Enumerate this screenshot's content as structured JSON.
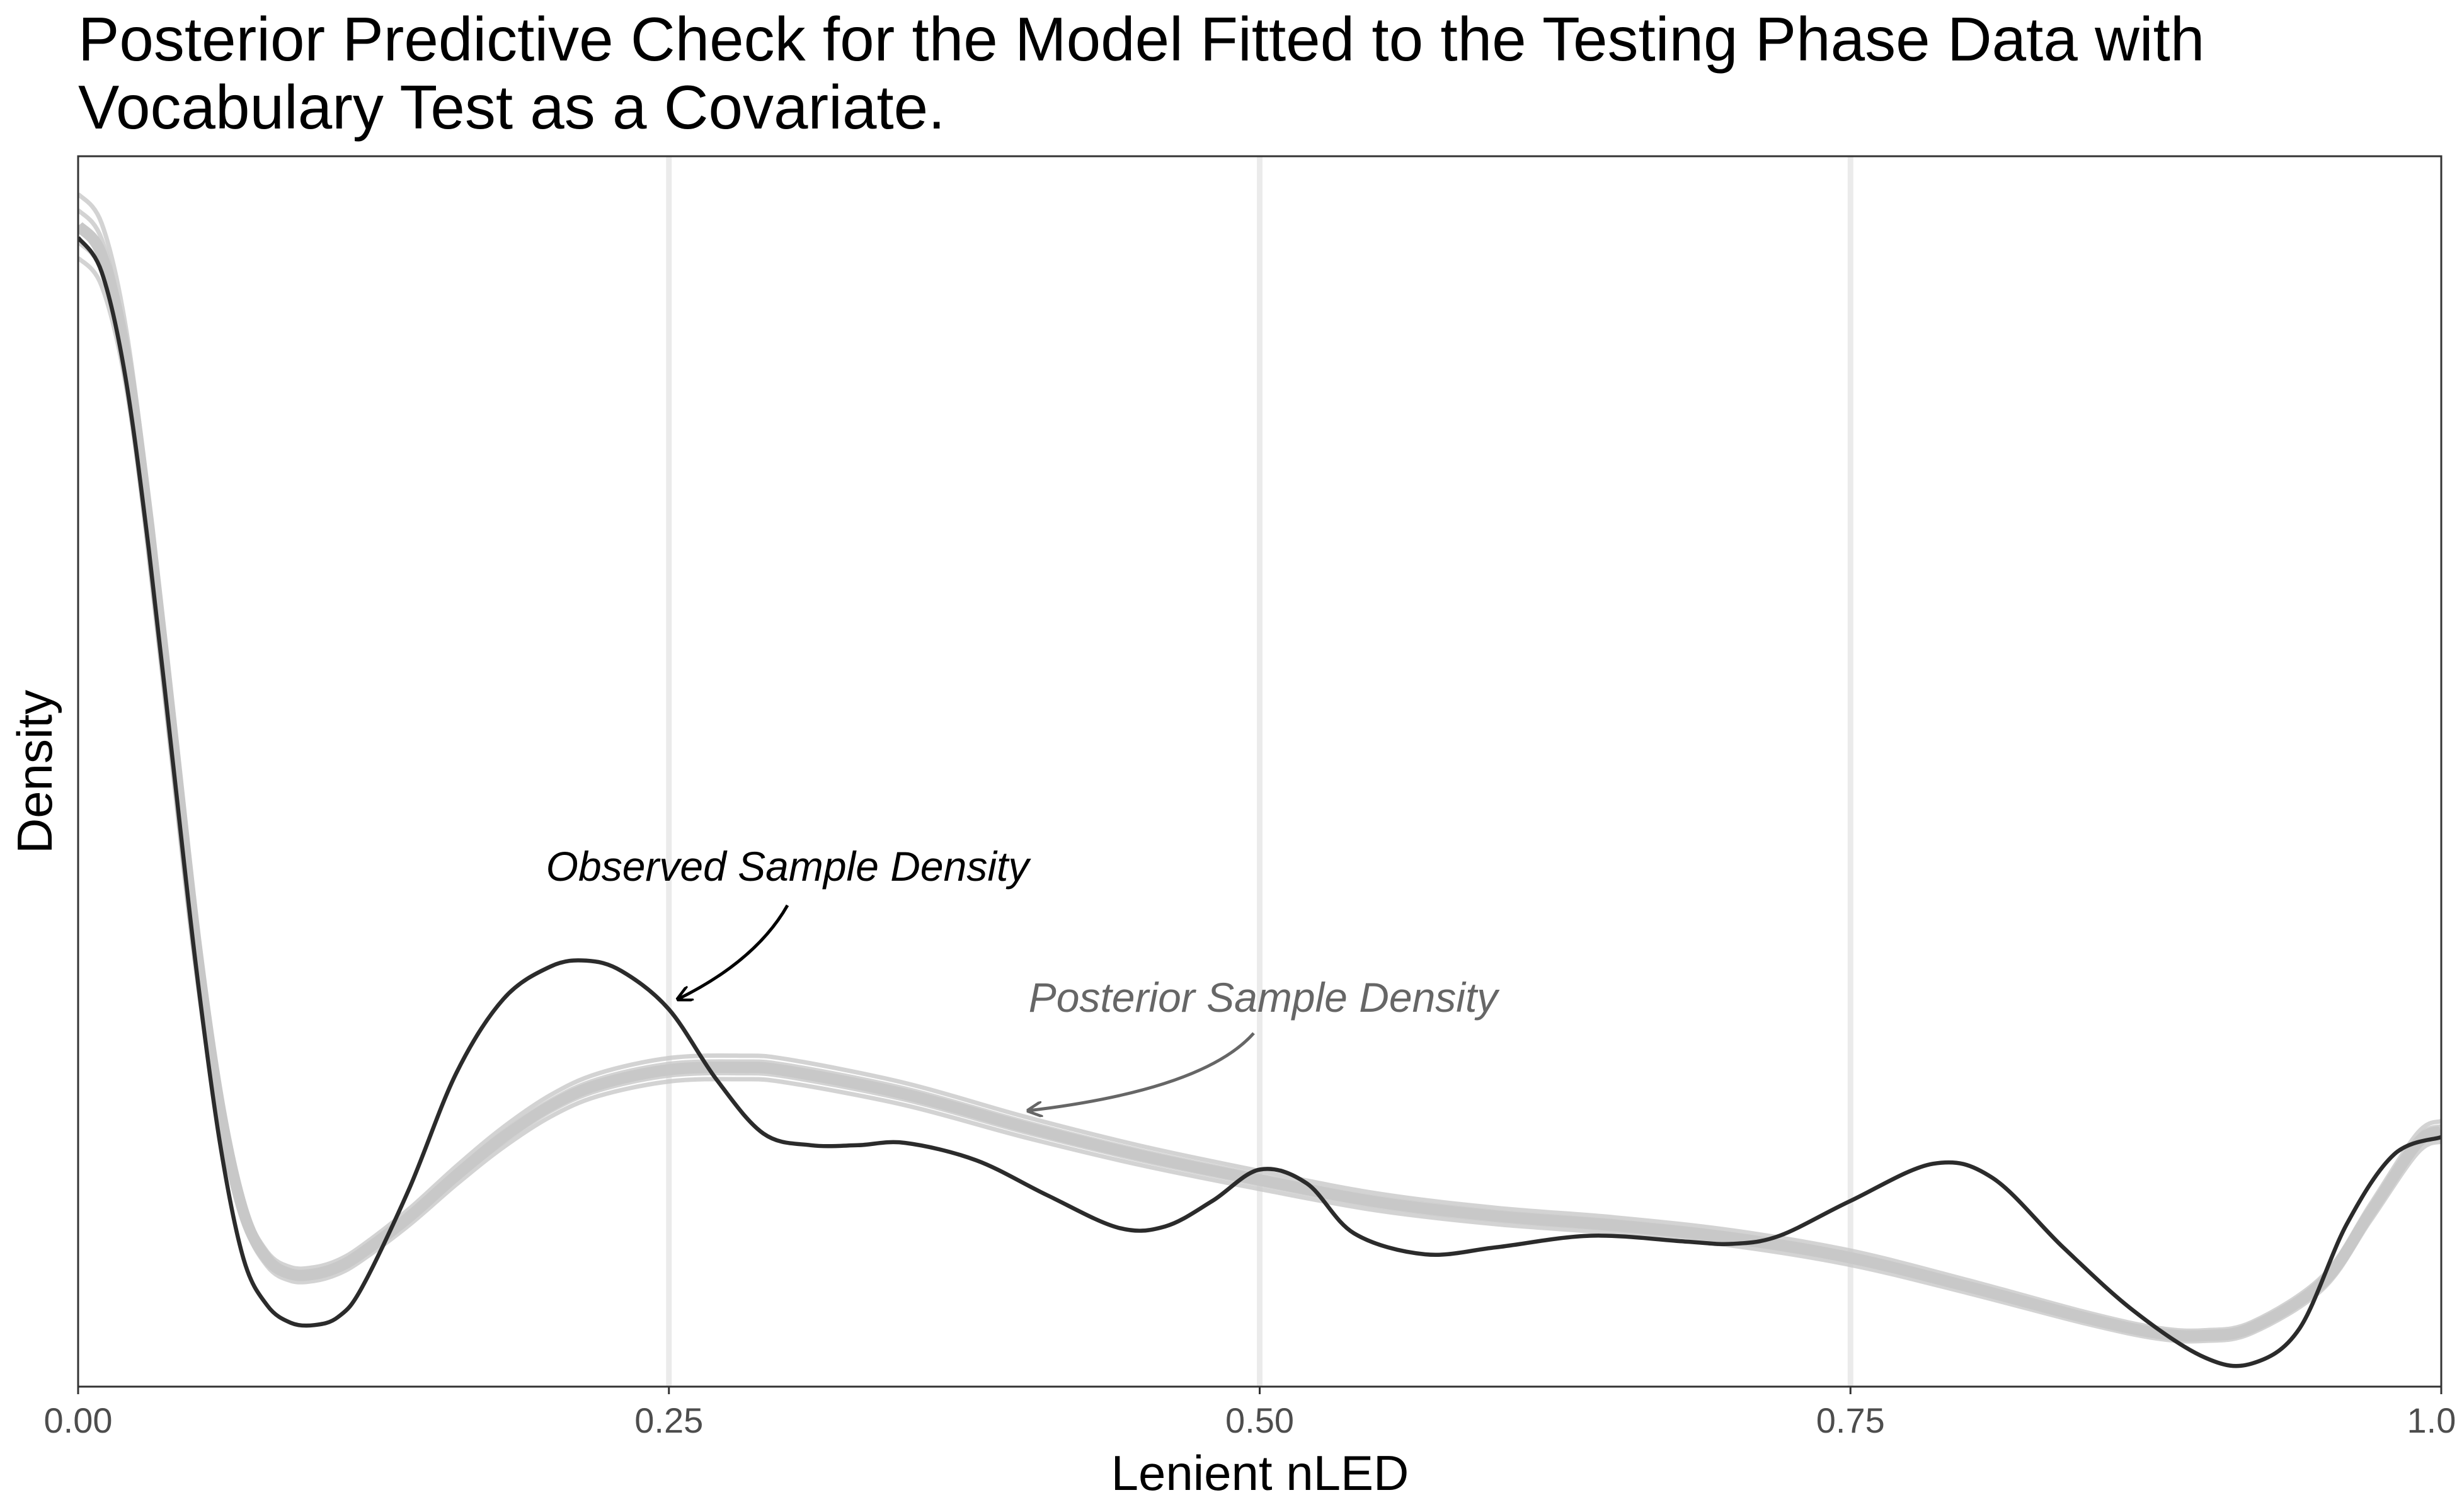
{
  "chart_data": {
    "type": "line",
    "title": "Posterior Predictive Check for the Model Fitted to the Testing Phase Data with Vocabulary Test as a Covariate.",
    "xlabel": "Lenient nLED",
    "ylabel": "Density",
    "xlim": [
      0,
      1
    ],
    "ylim": [
      0,
      1
    ],
    "x_ticks": [
      "0.00",
      "0.25",
      "0.50",
      "0.75",
      "1.00"
    ],
    "x_tick_values": [
      0,
      0.25,
      0.5,
      0.75,
      1.0
    ],
    "y_ticks_shown": false,
    "grid": "vertical major gridlines only",
    "colors": {
      "observed": "#2b2b2b",
      "posterior": "#c8c8c8",
      "posterior_label": "#666666",
      "grid": "#ebebeb",
      "border": "#333333"
    },
    "series": [
      {
        "name": "Observed Sample Density",
        "x": [
          0.0,
          0.01,
          0.02,
          0.03,
          0.04,
          0.05,
          0.06,
          0.07,
          0.08,
          0.09,
          0.1,
          0.11,
          0.12,
          0.14,
          0.16,
          0.18,
          0.2,
          0.215,
          0.23,
          0.25,
          0.27,
          0.29,
          0.31,
          0.33,
          0.35,
          0.38,
          0.41,
          0.44,
          0.46,
          0.48,
          0.5,
          0.52,
          0.54,
          0.57,
          0.6,
          0.64,
          0.68,
          0.7,
          0.72,
          0.75,
          0.785,
          0.81,
          0.84,
          0.87,
          0.9,
          0.92,
          0.94,
          0.96,
          0.98,
          1.0
        ],
        "y": [
          0.97,
          0.94,
          0.85,
          0.7,
          0.52,
          0.34,
          0.19,
          0.09,
          0.05,
          0.035,
          0.033,
          0.04,
          0.065,
          0.15,
          0.25,
          0.314,
          0.342,
          0.347,
          0.338,
          0.305,
          0.245,
          0.198,
          0.188,
          0.188,
          0.19,
          0.175,
          0.145,
          0.117,
          0.118,
          0.14,
          0.167,
          0.155,
          0.112,
          0.094,
          0.1,
          0.11,
          0.105,
          0.103,
          0.11,
          0.14,
          0.172,
          0.16,
          0.1,
          0.045,
          0.005,
          0.0,
          0.03,
          0.12,
          0.18,
          0.195
        ]
      },
      {
        "name": "Posterior Sample Density",
        "x": [
          0.0,
          0.01,
          0.02,
          0.03,
          0.04,
          0.05,
          0.06,
          0.07,
          0.08,
          0.09,
          0.1,
          0.11,
          0.12,
          0.14,
          0.16,
          0.18,
          0.2,
          0.22,
          0.25,
          0.28,
          0.3,
          0.35,
          0.4,
          0.45,
          0.5,
          0.55,
          0.6,
          0.65,
          0.7,
          0.75,
          0.8,
          0.85,
          0.88,
          0.9,
          0.92,
          0.95,
          0.97,
          0.99,
          1.0
        ],
        "y": [
          0.98,
          0.955,
          0.87,
          0.72,
          0.54,
          0.36,
          0.22,
          0.13,
          0.09,
          0.077,
          0.077,
          0.083,
          0.095,
          0.126,
          0.162,
          0.195,
          0.222,
          0.24,
          0.253,
          0.255,
          0.252,
          0.232,
          0.204,
          0.179,
          0.158,
          0.139,
          0.127,
          0.119,
          0.108,
          0.091,
          0.066,
          0.039,
          0.026,
          0.024,
          0.031,
          0.07,
          0.13,
          0.19,
          0.2
        ]
      }
    ],
    "annotations": [
      {
        "text": "Observed Sample Density",
        "series": "Observed Sample Density",
        "arrow_target": [
          0.25,
          0.317
        ]
      },
      {
        "text": "Posterior Sample Density",
        "series": "Posterior Sample Density",
        "arrow_target": [
          0.4,
          0.219
        ]
      }
    ]
  }
}
